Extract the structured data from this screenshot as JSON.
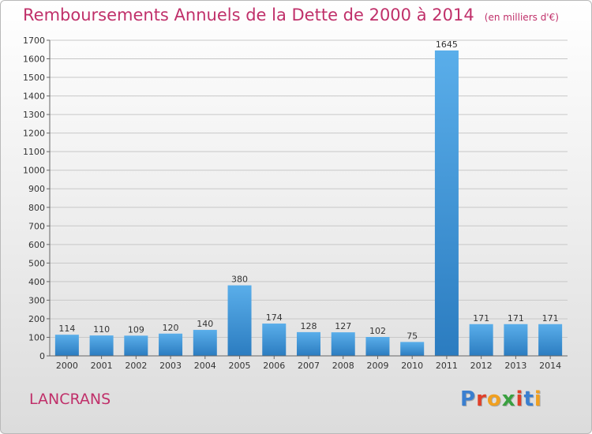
{
  "header": {
    "title": "Remboursements Annuels de la Dette de 2000 à 2014",
    "subtitle": "(en milliers d'€)"
  },
  "footer": {
    "city": "LANCRANS",
    "logo_text": "Proxiti"
  },
  "colors": {
    "title": "#c0306a",
    "bar_light": "#5aaeea",
    "bar_dark": "#2b7cc0",
    "grid": "#c8c8c8",
    "axis_text": "#333333"
  },
  "chart_data": {
    "type": "bar",
    "title": "Remboursements Annuels de la Dette de 2000 à 2014",
    "subtitle": "(en milliers d'€)",
    "categories": [
      "2000",
      "2001",
      "2002",
      "2003",
      "2004",
      "2005",
      "2006",
      "2007",
      "2008",
      "2009",
      "2010",
      "2011",
      "2012",
      "2013",
      "2014"
    ],
    "values": [
      114,
      110,
      109,
      120,
      140,
      380,
      174,
      128,
      127,
      102,
      75,
      1645,
      171,
      171,
      171
    ],
    "ylim": [
      0,
      1700
    ],
    "yticks": [
      0,
      100,
      200,
      300,
      400,
      500,
      600,
      700,
      800,
      900,
      1000,
      1100,
      1200,
      1300,
      1400,
      1500,
      1600,
      1700
    ],
    "grid": true,
    "data_labels": true
  }
}
